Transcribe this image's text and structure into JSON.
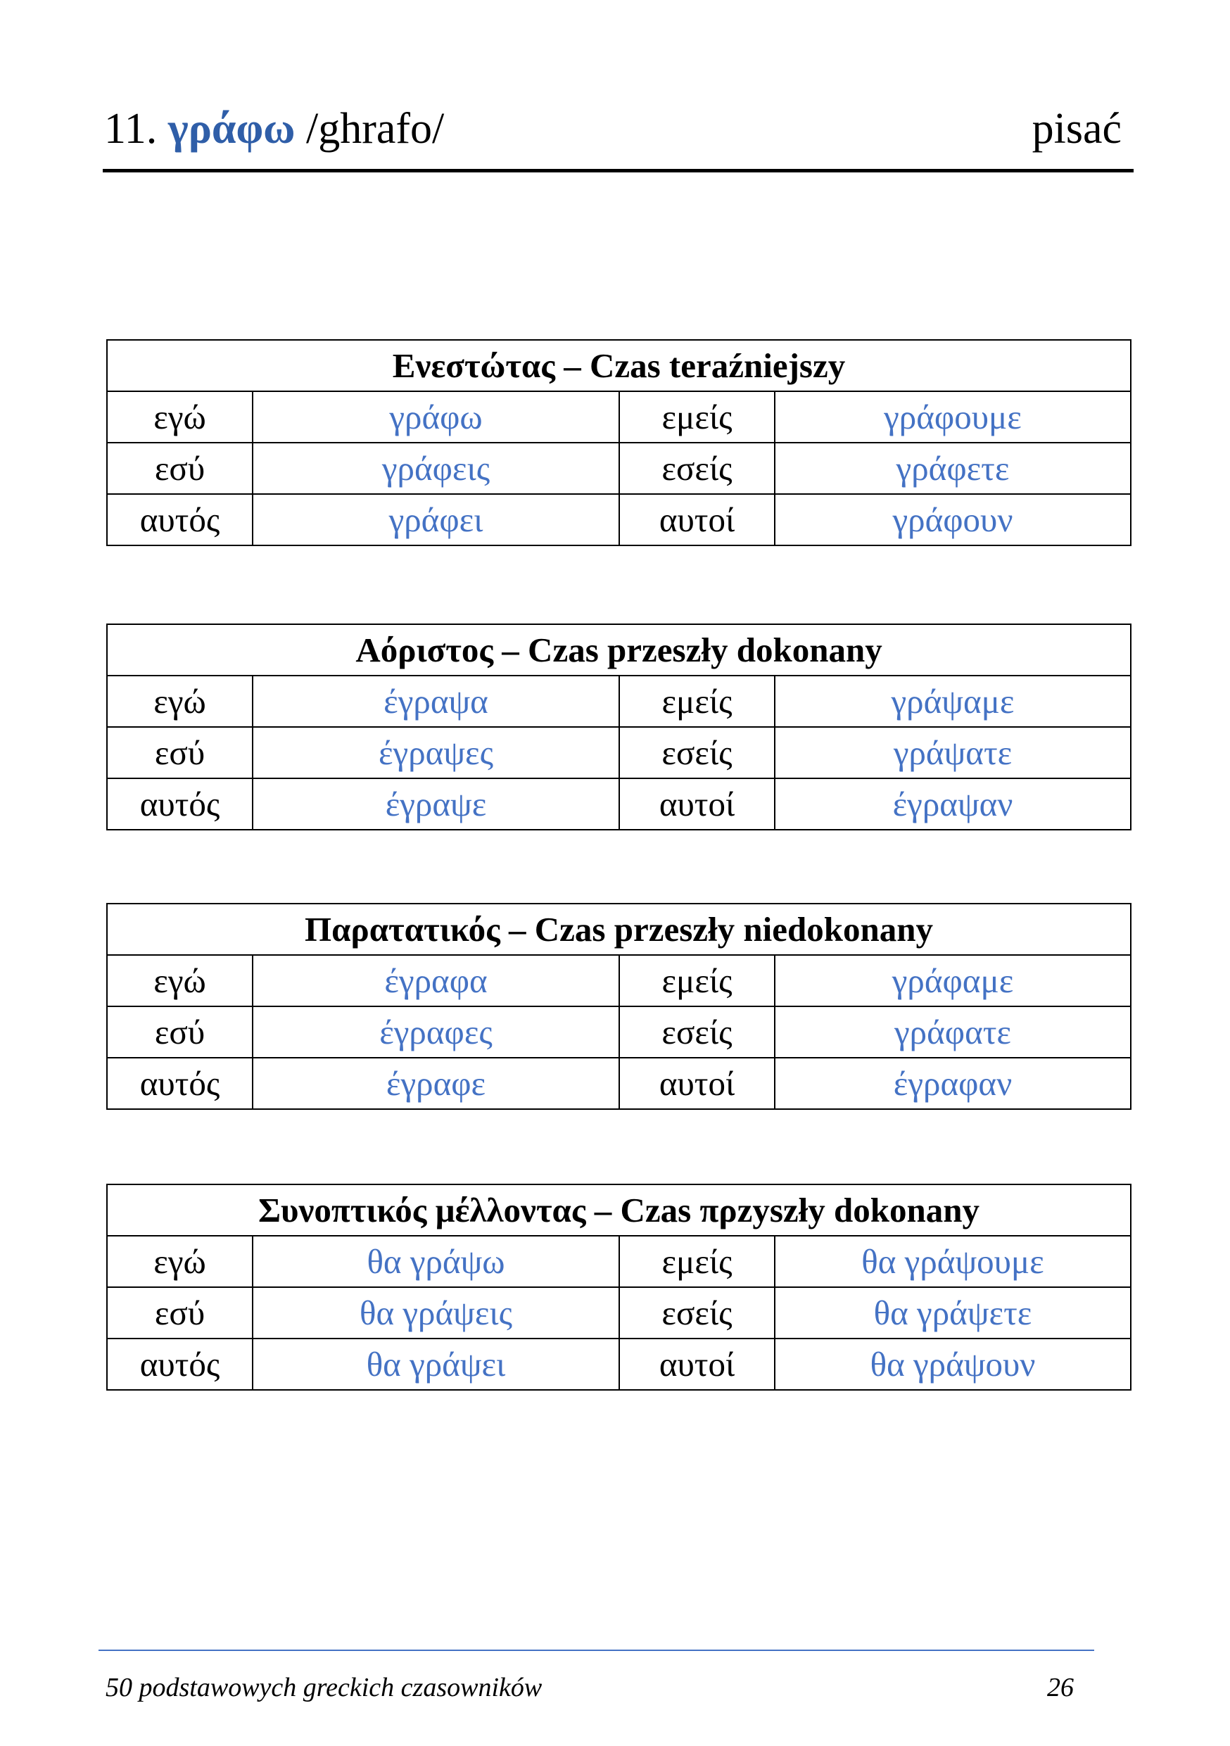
{
  "header": {
    "number": "11.",
    "word": "γράφω",
    "transcription": "/ghrafo/",
    "translation": "pisać"
  },
  "tables": [
    {
      "title": "Ενεστώτας – Czas teraźniejszy",
      "rows": [
        [
          "εγώ",
          "γράφω",
          "εμείς",
          "γράφουμε"
        ],
        [
          "εσύ",
          "γράφεις",
          "εσείς",
          "γράφετε"
        ],
        [
          "αυτός",
          "γράφει",
          "αυτοί",
          "γράφουν"
        ]
      ]
    },
    {
      "title": "Αόριστος – Czas przeszły dokonany",
      "rows": [
        [
          "εγώ",
          "έγραψα",
          "εμείς",
          "γράψαμε"
        ],
        [
          "εσύ",
          "έγραψες",
          "εσείς",
          "γράψατε"
        ],
        [
          "αυτός",
          "έγραψε",
          "αυτοί",
          "έγραψαν"
        ]
      ]
    },
    {
      "title": "Παρατατικός – Czas przeszły niedokonany",
      "rows": [
        [
          "εγώ",
          "έγραφα",
          "εμείς",
          "γράφαμε"
        ],
        [
          "εσύ",
          "έγραφες",
          "εσείς",
          "γράφατε"
        ],
        [
          "αυτός",
          "έγραφε",
          "αυτοί",
          "έγραφαν"
        ]
      ]
    },
    {
      "title": "Συνοπτικός μέλλοντας – Czas πρzyszły dokonany",
      "rows": [
        [
          "εγώ",
          "θα γράψω",
          "εμείς",
          "θα γράψουμε"
        ],
        [
          "εσύ",
          "θα γράψεις",
          "εσείς",
          "θα γράψετε"
        ],
        [
          "αυτός",
          "θα γράψει",
          "αυτοί",
          "θα γράψουν"
        ]
      ]
    }
  ],
  "footer": {
    "title": "50 podstawowych greckich czasowników",
    "page": "26"
  }
}
